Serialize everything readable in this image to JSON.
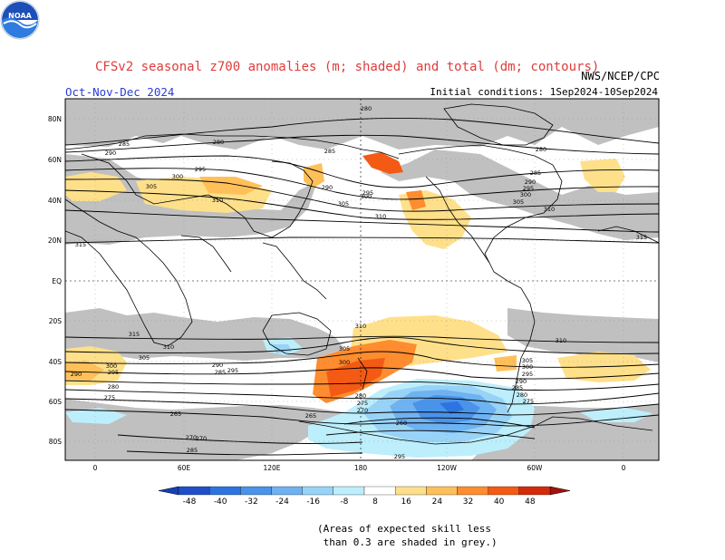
{
  "header": {
    "title": "CFSv2 seasonal z700 anomalies (m; shaded) and total (dm; contours)",
    "season": "Oct-Nov-Dec 2024",
    "initial_conditions": "Initial conditions: 1Sep2024-10Sep2024",
    "agency": "NWS/NCEP/CPC",
    "logo_text": "NOAA"
  },
  "map": {
    "lat_labels": [
      "80N",
      "60N",
      "40N",
      "20N",
      "EQ",
      "20S",
      "40S",
      "60S",
      "80S"
    ],
    "lon_labels": [
      "0",
      "60E",
      "120E",
      "180",
      "120W",
      "60W",
      "0"
    ],
    "contour_labels": [
      {
        "value": "280",
        "lon": 180
      },
      {
        "value": "285",
        "lon": 100
      },
      {
        "value": "280",
        "lon": 175
      },
      {
        "value": "290",
        "lon": 12
      },
      {
        "value": "295",
        "lon": 88
      },
      {
        "value": "300",
        "lon": 100
      },
      {
        "value": "305",
        "lon": 72
      },
      {
        "value": "310",
        "lon": 107
      },
      {
        "value": "315",
        "lon": 7
      },
      {
        "value": "285",
        "lon": 200
      },
      {
        "value": "290",
        "lon": 197
      },
      {
        "value": "300",
        "lon": 212
      },
      {
        "value": "305",
        "lon": 210
      },
      {
        "value": "295",
        "lon": 228
      },
      {
        "value": "310",
        "lon": 222
      },
      {
        "value": "280",
        "lon": 300
      },
      {
        "value": "285",
        "lon": 305
      },
      {
        "value": "290",
        "lon": 295
      },
      {
        "value": "295",
        "lon": 300
      },
      {
        "value": "300",
        "lon": 298
      },
      {
        "value": "305",
        "lon": 302
      },
      {
        "value": "310",
        "lon": 318
      },
      {
        "value": "315",
        "lon": 348
      },
      {
        "value": "310",
        "lon": 192
      },
      {
        "value": "315",
        "lon": 38
      },
      {
        "value": "310",
        "lon": 128
      },
      {
        "value": "305",
        "lon": 52
      },
      {
        "value": "305",
        "lon": 210
      },
      {
        "value": "300",
        "lon": 207
      },
      {
        "value": "295",
        "lon": 197
      },
      {
        "value": "290",
        "lon": 130
      },
      {
        "value": "285",
        "lon": 114
      },
      {
        "value": "280",
        "lon": 22
      },
      {
        "value": "275",
        "lon": 18
      },
      {
        "value": "300",
        "lon": 18
      },
      {
        "value": "295",
        "lon": 18
      },
      {
        "value": "290",
        "lon": 0
      },
      {
        "value": "310",
        "lon": 330
      },
      {
        "value": "305",
        "lon": 298
      },
      {
        "value": "300",
        "lon": 297
      },
      {
        "value": "295",
        "lon": 293
      },
      {
        "value": "290",
        "lon": 290
      },
      {
        "value": "285",
        "lon": 287
      },
      {
        "value": "280",
        "lon": 292
      },
      {
        "value": "275",
        "lon": 293
      },
      {
        "value": "280",
        "lon": 197
      },
      {
        "value": "275",
        "lon": 200
      },
      {
        "value": "270",
        "lon": 200
      },
      {
        "value": "265",
        "lon": 170
      },
      {
        "value": "260",
        "lon": 228
      },
      {
        "value": "265",
        "lon": 90
      },
      {
        "value": "270",
        "lon": 118
      },
      {
        "value": "270",
        "lon": 118
      },
      {
        "value": "285",
        "lon": 200
      },
      {
        "value": "295",
        "lon": 120
      }
    ]
  },
  "legend": {
    "colorbar": [
      {
        "label": "-48",
        "color": "#1f4fc8"
      },
      {
        "label": "-40",
        "color": "#2e74e0"
      },
      {
        "label": "-32",
        "color": "#4a93ea"
      },
      {
        "label": "-24",
        "color": "#6fb2f2"
      },
      {
        "label": "-16",
        "color": "#98d3f7"
      },
      {
        "label": "-8",
        "color": "#bdeefb"
      },
      {
        "label": "8",
        "color": "#ffffff"
      },
      {
        "label": "16",
        "color": "#ffe08a"
      },
      {
        "label": "24",
        "color": "#ffc05a"
      },
      {
        "label": "32",
        "color": "#ff8c2e"
      },
      {
        "label": "40",
        "color": "#f45a14"
      },
      {
        "label": "48",
        "color": "#d42a0a"
      }
    ],
    "end_low_color": "#1640b8",
    "end_high_color": "#a4120a"
  },
  "note": "(Areas of expected skill less\n than 0.3 are shaded in grey.)",
  "colors": {
    "grey_skill": "#c0c0c0",
    "ocean": "#ffffff",
    "contour": "#000000"
  }
}
